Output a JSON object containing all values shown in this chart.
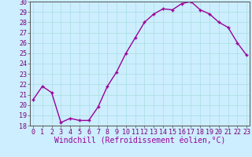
{
  "x": [
    0,
    1,
    2,
    3,
    4,
    5,
    6,
    7,
    8,
    9,
    10,
    11,
    12,
    13,
    14,
    15,
    16,
    17,
    18,
    19,
    20,
    21,
    22,
    23
  ],
  "y": [
    20.5,
    21.8,
    21.2,
    18.3,
    18.7,
    18.5,
    18.5,
    19.8,
    21.8,
    23.2,
    25.0,
    26.5,
    28.0,
    28.8,
    29.3,
    29.2,
    29.8,
    30.0,
    29.2,
    28.8,
    28.0,
    27.5,
    26.0,
    24.8
  ],
  "line_color": "#990099",
  "marker": "+",
  "marker_size": 3.5,
  "bg_color": "#cceeff",
  "grid_color": "#aadddd",
  "xlabel": "Windchill (Refroidissement éolien,°C)",
  "xlabel_color": "#990099",
  "xlabel_fontsize": 7,
  "ylim": [
    18,
    30
  ],
  "xlim": [
    -0.3,
    23.3
  ],
  "yticks": [
    18,
    19,
    20,
    21,
    22,
    23,
    24,
    25,
    26,
    27,
    28,
    29,
    30
  ],
  "xticks": [
    0,
    1,
    2,
    3,
    4,
    5,
    6,
    7,
    8,
    9,
    10,
    11,
    12,
    13,
    14,
    15,
    16,
    17,
    18,
    19,
    20,
    21,
    22,
    23
  ],
  "tick_label_fontsize": 6,
  "tick_color": "#770077",
  "axis_color": "#555555",
  "line_width": 1.0,
  "marker_color": "#990099",
  "spine_color": "#555555"
}
